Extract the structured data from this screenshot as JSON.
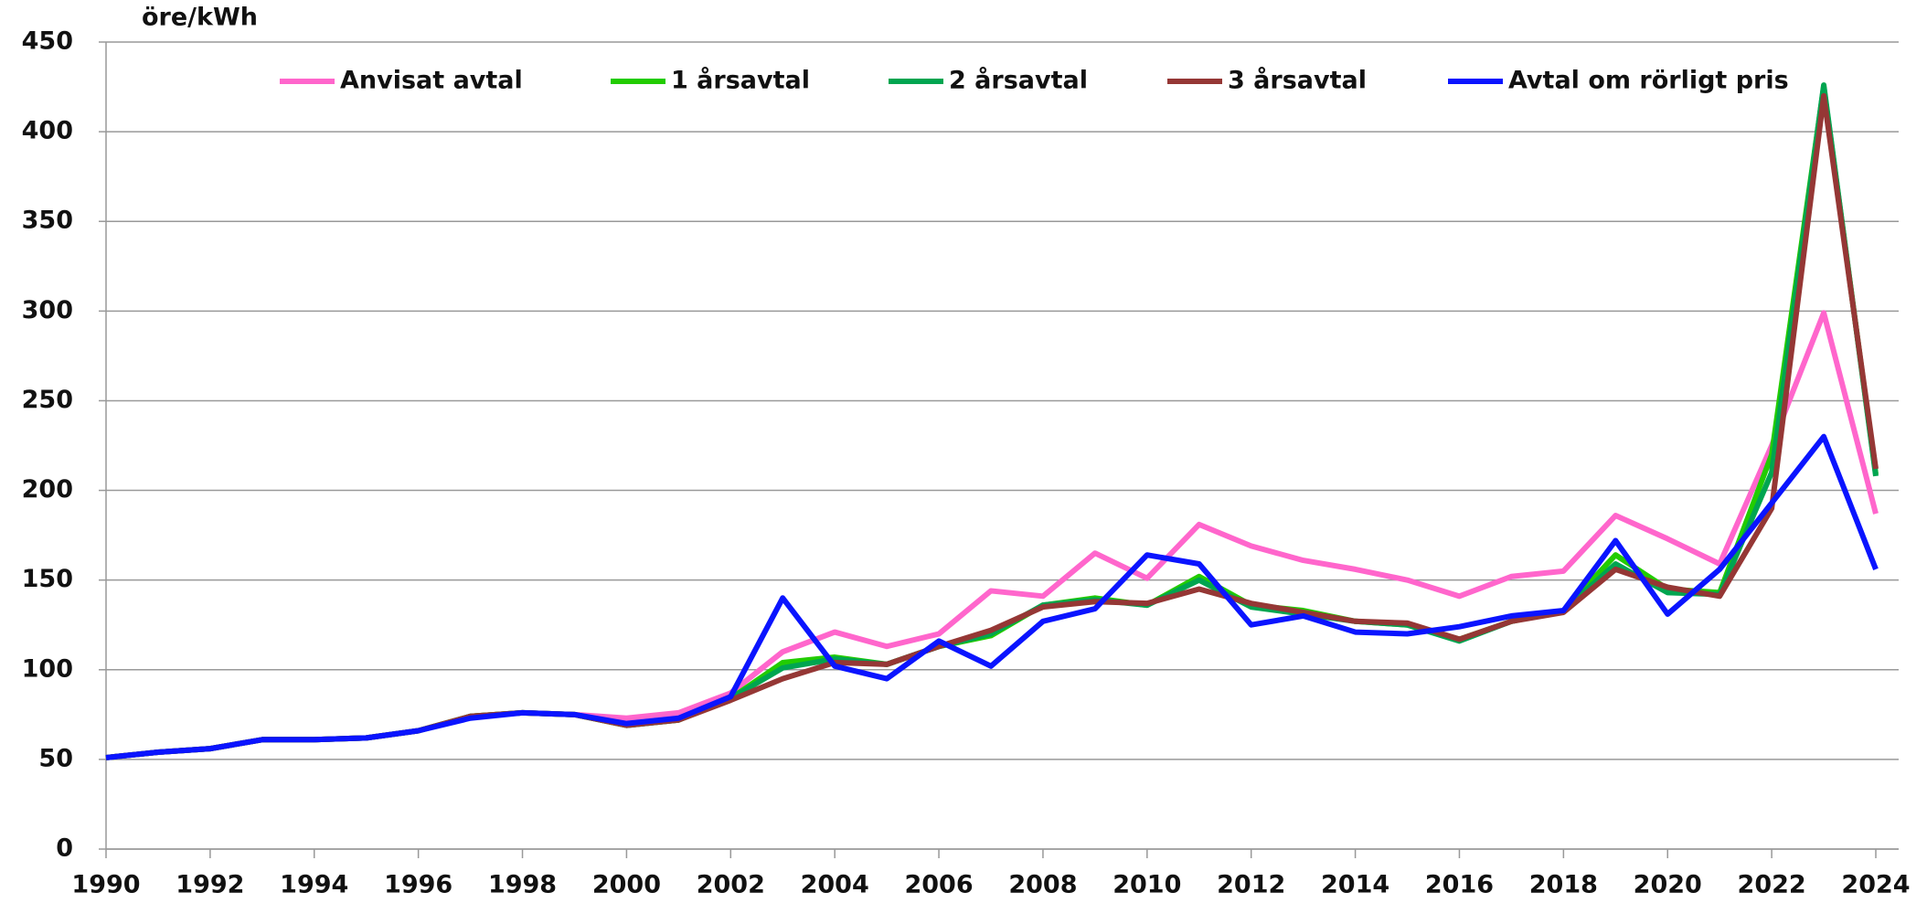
{
  "chart_data": {
    "type": "line",
    "y_label": "öre/kWh",
    "x": [
      1990,
      1991,
      1992,
      1993,
      1994,
      1995,
      1996,
      1997,
      1998,
      1999,
      2000,
      2001,
      2002,
      2003,
      2004,
      2005,
      2006,
      2007,
      2008,
      2009,
      2010,
      2011,
      2012,
      2013,
      2014,
      2015,
      2016,
      2017,
      2018,
      2019,
      2020,
      2021,
      2022,
      2023,
      2024
    ],
    "series": [
      {
        "name": "Anvisat avtal",
        "color": "#ff66cc",
        "values": [
          51,
          54,
          56,
          61,
          61,
          62,
          66,
          74,
          76,
          75,
          73,
          76,
          87,
          110,
          121,
          113,
          120,
          144,
          141,
          165,
          151,
          181,
          169,
          161,
          156,
          150,
          141,
          152,
          155,
          186,
          173,
          159,
          225,
          299,
          187
        ]
      },
      {
        "name": "1 årsavtal",
        "color": "#22cc00",
        "values": [
          51,
          54,
          56,
          61,
          61,
          62,
          66,
          74,
          76,
          75,
          69,
          72,
          84,
          104,
          107,
          103,
          113,
          119,
          136,
          140,
          136,
          152,
          136,
          133,
          127,
          125,
          117,
          127,
          133,
          164,
          145,
          143,
          220,
          425,
          209
        ]
      },
      {
        "name": "2 årsavtal",
        "color": "#00a550",
        "values": [
          51,
          54,
          56,
          61,
          61,
          62,
          66,
          74,
          76,
          75,
          69,
          72,
          84,
          101,
          106,
          103,
          113,
          120,
          136,
          139,
          136,
          150,
          135,
          131,
          127,
          125,
          116,
          127,
          133,
          159,
          143,
          142,
          210,
          426,
          208
        ]
      },
      {
        "name": "3 årsavtal",
        "color": "#953735",
        "values": [
          51,
          54,
          56,
          61,
          61,
          62,
          66,
          74,
          76,
          75,
          69,
          72,
          83,
          95,
          104,
          103,
          113,
          122,
          135,
          138,
          137,
          145,
          137,
          132,
          127,
          126,
          117,
          127,
          132,
          156,
          146,
          141,
          190,
          420,
          212
        ]
      },
      {
        "name": "Avtal om rörligt pris",
        "color": "#0a14ff",
        "values": [
          51,
          54,
          56,
          61,
          61,
          62,
          66,
          73,
          76,
          75,
          70,
          73,
          85,
          140,
          102,
          95,
          116,
          102,
          127,
          134,
          164,
          159,
          125,
          130,
          121,
          120,
          124,
          130,
          133,
          172,
          131,
          156,
          193,
          230,
          156
        ]
      }
    ],
    "xlim": [
      1990,
      2024
    ],
    "xticks": [
      1990,
      1992,
      1994,
      1996,
      1998,
      2000,
      2002,
      2004,
      2006,
      2008,
      2010,
      2012,
      2014,
      2016,
      2018,
      2020,
      2022,
      2024
    ],
    "ylim": [
      0,
      450
    ],
    "yticks": [
      0,
      50,
      100,
      150,
      200,
      250,
      300,
      350,
      400,
      450
    ],
    "grid": true,
    "legend": "top"
  }
}
